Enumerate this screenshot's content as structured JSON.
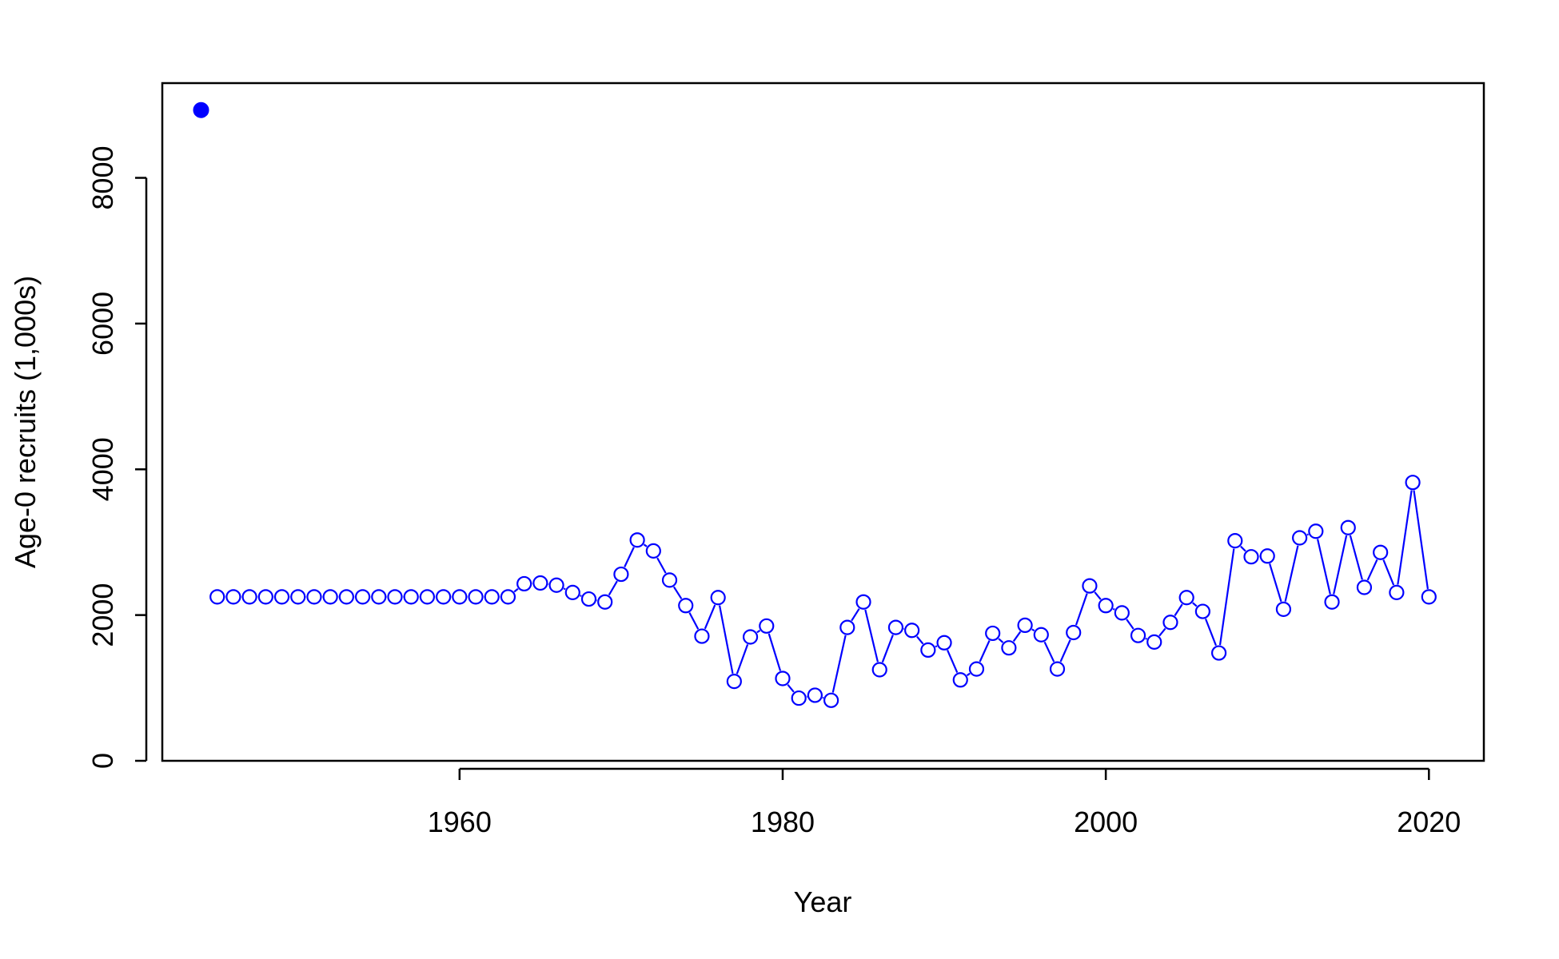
{
  "chart_data": {
    "type": "line",
    "title": "",
    "xlabel": "Year",
    "ylabel": "Age-0 recruits (1,000s)",
    "xlim": [
      1941.6,
      2023.4
    ],
    "ylim": [
      0,
      9300
    ],
    "x_ticks": [
      1960,
      1980,
      2000,
      2020
    ],
    "y_ticks": [
      0,
      2000,
      4000,
      6000,
      8000
    ],
    "grid": false,
    "legend": "none",
    "colors": {
      "series": "#0000ff",
      "axis": "#000000"
    },
    "virgin_point": {
      "x": 1944,
      "y": 8930,
      "style": "filled-circle"
    },
    "series": [
      {
        "style": "line-with-open-circles",
        "x": [
          1945,
          1946,
          1947,
          1948,
          1949,
          1950,
          1951,
          1952,
          1953,
          1954,
          1955,
          1956,
          1957,
          1958,
          1959,
          1960,
          1961,
          1962,
          1963,
          1964,
          1965,
          1966,
          1967,
          1968,
          1969,
          1970,
          1971,
          1972,
          1973,
          1974,
          1975,
          1976,
          1977,
          1978,
          1979,
          1980,
          1981,
          1982,
          1983,
          1984,
          1985,
          1986,
          1987,
          1988,
          1989,
          1990,
          1991,
          1992,
          1993,
          1994,
          1995,
          1996,
          1997,
          1998,
          1999,
          2000,
          2001,
          2002,
          2003,
          2004,
          2005,
          2006,
          2007,
          2008,
          2009,
          2010,
          2011,
          2012,
          2013,
          2014,
          2015,
          2016,
          2017,
          2018,
          2019,
          2020
        ],
        "y": [
          2250,
          2250,
          2250,
          2250,
          2250,
          2250,
          2250,
          2250,
          2250,
          2250,
          2250,
          2250,
          2250,
          2250,
          2250,
          2250,
          2250,
          2250,
          2250,
          2430,
          2440,
          2410,
          2310,
          2220,
          2180,
          2560,
          3030,
          2880,
          2480,
          2130,
          1710,
          2240,
          1090,
          1700,
          1850,
          1130,
          860,
          900,
          830,
          1830,
          2180,
          1250,
          1830,
          1790,
          1520,
          1620,
          1110,
          1260,
          1750,
          1550,
          1860,
          1730,
          1260,
          1760,
          2400,
          2130,
          2030,
          1720,
          1630,
          1900,
          2240,
          2050,
          1480,
          3020,
          2800,
          2810,
          2080,
          3060,
          3150,
          2180,
          3200,
          2380,
          2860,
          2310,
          3820,
          2250
        ]
      }
    ]
  }
}
